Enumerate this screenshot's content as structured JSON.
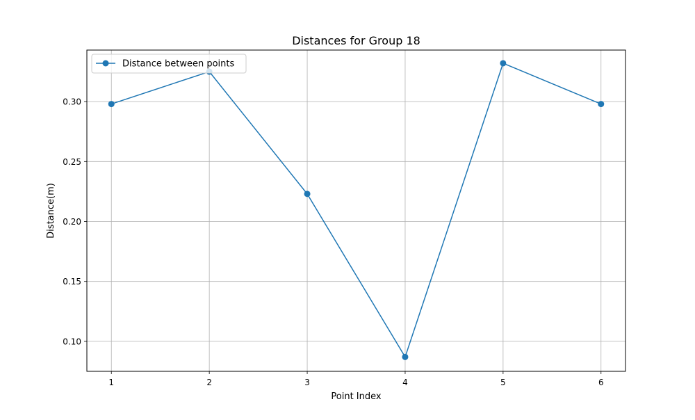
{
  "chart_data": {
    "type": "line",
    "title": "Distances for Group 18",
    "xlabel": "Point Index",
    "ylabel": "Distance(m)",
    "x": [
      1,
      2,
      3,
      4,
      5,
      6
    ],
    "xticks": [
      "1",
      "2",
      "3",
      "4",
      "5",
      "6"
    ],
    "yticks": [
      "0.10",
      "0.15",
      "0.20",
      "0.25",
      "0.30"
    ],
    "ytick_values": [
      0.1,
      0.15,
      0.2,
      0.25,
      0.3
    ],
    "xlim": [
      0.75,
      6.25
    ],
    "ylim": [
      0.075,
      0.343
    ],
    "grid": true,
    "legend_position": "upper-left",
    "series": [
      {
        "name": "Distance between points",
        "color": "#1f77b4",
        "marker": "circle",
        "values": [
          0.298,
          0.325,
          0.223,
          0.087,
          0.332,
          0.298
        ]
      }
    ]
  }
}
